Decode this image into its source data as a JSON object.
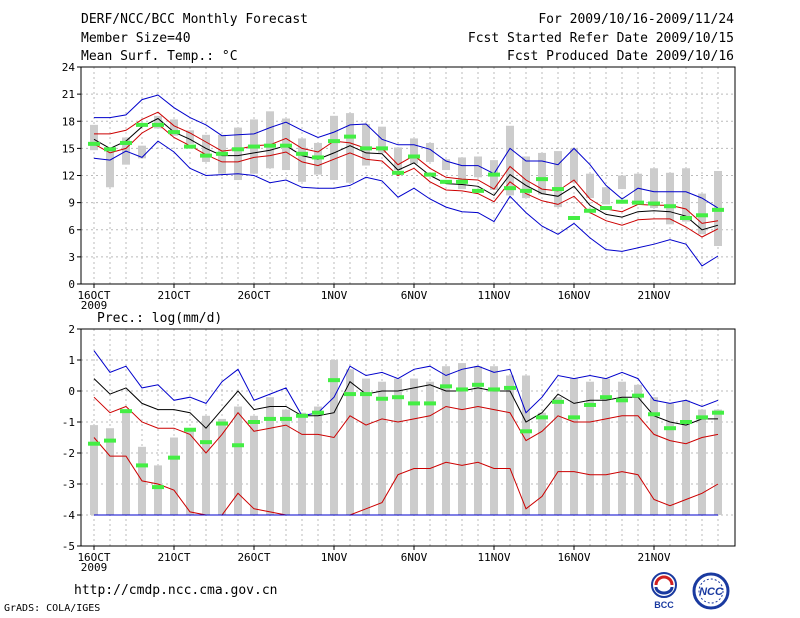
{
  "header": {
    "title": "DERF/NCC/BCC Monthly Forecast",
    "member_size": "Member Size=40",
    "variable": "Mean Surf. Temp.: °C",
    "forecast_period": "For 2009/10/16-2009/11/24",
    "started_refer": "Fcst Started Refer Date 2009/10/15",
    "produced": "Fcst Produced Date 2009/10/16"
  },
  "colors": {
    "spread_box": "#cccccc",
    "member_mean": "#44ee44",
    "envelope_outer": "#0000cc",
    "envelope_inner": "#cc0000",
    "ensemble_mean": "#000000"
  },
  "chart_data": [
    {
      "type": "line",
      "title": "Mean Surf. Temp.: °C",
      "ylim": [
        0,
        24
      ],
      "yticks": [
        0,
        3,
        6,
        9,
        12,
        15,
        18,
        21,
        24
      ],
      "x_tick_days": [
        0,
        5,
        10,
        15,
        20,
        25,
        30,
        35
      ],
      "x_tick_labels": [
        "16OCT",
        "21OCT",
        "26OCT",
        "1NOV",
        "6NOV",
        "11NOV",
        "16NOV",
        "21NOV"
      ],
      "x_sublabel": "2009",
      "days": [
        0,
        1,
        2,
        3,
        4,
        5,
        6,
        7,
        8,
        9,
        10,
        11,
        12,
        13,
        14,
        15,
        16,
        17,
        18,
        19,
        20,
        21,
        22,
        23,
        24,
        25,
        26,
        27,
        28,
        29,
        30,
        31,
        32,
        33,
        34,
        35,
        36,
        37,
        38,
        39
      ],
      "box_low": [
        14.8,
        10.7,
        13.2,
        13.9,
        17.2,
        16.4,
        15.5,
        13.5,
        12.2,
        11.5,
        12.2,
        12.8,
        12.6,
        11.3,
        12.1,
        11.5,
        11.2,
        13.1,
        14.5,
        12.6,
        13.3,
        13.5,
        12.6,
        10.5,
        11.8,
        10.4,
        9.8,
        9.5,
        9.9,
        8.5,
        11.2,
        9.5,
        8.8,
        10.5,
        9.0,
        8.4,
        6.6,
        6.9,
        5.5,
        4.2
      ],
      "box_high": [
        17.6,
        15.0,
        16.2,
        15.3,
        18.6,
        18.2,
        17.0,
        16.5,
        16.5,
        17.3,
        18.2,
        19.1,
        18.3,
        16.1,
        15.6,
        18.6,
        18.9,
        17.7,
        17.4,
        15.1,
        16.1,
        15.6,
        13.8,
        14.0,
        14.1,
        13.7,
        17.5,
        14.1,
        14.5,
        14.7,
        15.0,
        12.2,
        10.7,
        12.0,
        12.2,
        12.8,
        12.3,
        12.8,
        10.0,
        12.5
      ],
      "member_mean": [
        15.5,
        14.9,
        15.6,
        17.6,
        17.6,
        16.8,
        15.2,
        14.2,
        14.4,
        14.9,
        15.2,
        15.3,
        15.3,
        14.4,
        14.0,
        15.8,
        16.3,
        15.0,
        15.0,
        12.3,
        14.1,
        12.1,
        11.3,
        11.3,
        10.3,
        12.1,
        10.6,
        10.3,
        11.6,
        10.5,
        7.3,
        8.1,
        8.4,
        9.1,
        9.0,
        8.9,
        8.6,
        7.3,
        7.6,
        8.2
      ],
      "series": [
        {
          "name": "outer-upper",
          "color": "#0000cc",
          "values": [
            18.4,
            18.4,
            18.7,
            20.4,
            20.9,
            19.5,
            18.4,
            17.6,
            16.4,
            16.5,
            16.6,
            17.3,
            17.9,
            17.0,
            16.2,
            16.8,
            17.6,
            17.7,
            16.0,
            15.4,
            15.4,
            14.9,
            13.6,
            13.1,
            13.1,
            12.2,
            15.0,
            13.6,
            13.6,
            13.2,
            15.0,
            13.2,
            10.9,
            9.4,
            10.6,
            10.2,
            10.2,
            10.2,
            9.5,
            8.4
          ]
        },
        {
          "name": "inner-upper",
          "color": "#cc0000",
          "values": [
            16.6,
            16.6,
            17.0,
            18.2,
            19.0,
            17.5,
            16.7,
            15.7,
            14.7,
            14.9,
            15.3,
            15.4,
            16.1,
            15.0,
            14.6,
            15.8,
            15.6,
            15.0,
            15.0,
            13.2,
            14.2,
            12.8,
            11.8,
            11.6,
            11.5,
            10.5,
            13.0,
            11.5,
            10.5,
            10.3,
            11.5,
            9.4,
            8.3,
            8.0,
            8.8,
            8.7,
            8.7,
            8.3,
            6.7,
            7.0
          ]
        },
        {
          "name": "ensemble-mean",
          "color": "#000000",
          "values": [
            16.0,
            15.0,
            15.8,
            17.4,
            18.3,
            16.8,
            16.0,
            15.0,
            14.2,
            14.2,
            14.5,
            14.8,
            15.3,
            14.2,
            13.8,
            14.5,
            15.3,
            14.5,
            14.4,
            12.6,
            13.4,
            12.0,
            11.1,
            11.0,
            10.8,
            9.8,
            12.1,
            10.9,
            10.0,
            9.7,
            10.8,
            8.7,
            7.7,
            7.4,
            8.0,
            8.1,
            8.0,
            7.5,
            6.0,
            6.5
          ]
        },
        {
          "name": "inner-lower",
          "color": "#cc0000",
          "values": [
            15.5,
            14.5,
            15.0,
            16.7,
            17.7,
            16.2,
            15.3,
            14.3,
            13.5,
            13.5,
            14.0,
            14.2,
            14.6,
            13.5,
            13.1,
            13.8,
            14.5,
            13.8,
            13.6,
            12.0,
            12.8,
            11.3,
            10.4,
            10.3,
            10.0,
            9.1,
            11.3,
            10.0,
            9.2,
            8.8,
            9.7,
            7.9,
            7.0,
            6.5,
            7.1,
            7.2,
            7.2,
            6.3,
            5.2,
            6.1
          ]
        },
        {
          "name": "outer-lower",
          "color": "#0000cc",
          "values": [
            13.9,
            13.7,
            14.7,
            14.0,
            15.8,
            14.6,
            12.8,
            12.0,
            12.1,
            12.2,
            12.0,
            11.2,
            11.5,
            10.7,
            10.6,
            10.6,
            10.9,
            11.8,
            11.4,
            9.6,
            10.6,
            9.4,
            8.5,
            8.0,
            7.9,
            6.9,
            9.7,
            7.9,
            6.4,
            5.5,
            6.7,
            5.1,
            3.8,
            3.6,
            4.0,
            4.4,
            4.9,
            4.4,
            2.0,
            3.1
          ]
        }
      ]
    },
    {
      "type": "line",
      "title": "Prec.: log(mm/d)",
      "ylim": [
        -5,
        2
      ],
      "yticks": [
        -5,
        -4,
        -3,
        -2,
        -1,
        0,
        1,
        2
      ],
      "x_tick_days": [
        0,
        5,
        10,
        15,
        20,
        25,
        30,
        35
      ],
      "x_tick_labels": [
        "16OCT",
        "21OCT",
        "26OCT",
        "1NOV",
        "6NOV",
        "11NOV",
        "16NOV",
        "21NOV"
      ],
      "x_sublabel": "2009",
      "days": [
        0,
        1,
        2,
        3,
        4,
        5,
        6,
        7,
        8,
        9,
        10,
        11,
        12,
        13,
        14,
        15,
        16,
        17,
        18,
        19,
        20,
        21,
        22,
        23,
        24,
        25,
        26,
        27,
        28,
        29,
        30,
        31,
        32,
        33,
        34,
        35,
        36,
        37,
        38,
        39
      ],
      "box_low": [
        -4.0,
        -4.0,
        -4.0,
        -4.0,
        -4.0,
        -4.0,
        -4.0,
        -4.0,
        -4.0,
        -4.0,
        -4.0,
        -4.0,
        -4.0,
        -4.0,
        -4.0,
        -4.0,
        -4.0,
        -4.0,
        -4.0,
        -4.0,
        -4.0,
        -4.0,
        -4.0,
        -4.0,
        -4.0,
        -4.0,
        -4.0,
        -4.0,
        -4.0,
        -4.0,
        -4.0,
        -4.0,
        -4.0,
        -4.0,
        -4.0,
        -4.0,
        -4.0,
        -4.0,
        -4.0,
        -4.0
      ],
      "box_high": [
        -1.1,
        -1.2,
        -0.7,
        -1.8,
        -2.4,
        -1.5,
        -1.3,
        -0.8,
        -0.9,
        -0.5,
        -0.8,
        -0.2,
        -0.6,
        -0.7,
        -0.5,
        1.0,
        0.7,
        0.4,
        0.3,
        0.4,
        0.4,
        0.3,
        0.8,
        0.9,
        0.8,
        0.8,
        0.5,
        0.5,
        -0.7,
        -0.2,
        0.4,
        0.3,
        0.4,
        0.3,
        0.2,
        -0.2,
        -0.4,
        -0.3,
        -0.6,
        -0.6
      ],
      "member_mean": [
        -1.7,
        -1.6,
        -0.65,
        -2.4,
        -3.1,
        -2.15,
        -1.25,
        -1.65,
        -1.05,
        -1.75,
        -1.0,
        -0.9,
        -0.9,
        -0.8,
        -0.7,
        0.35,
        -0.1,
        -0.1,
        -0.25,
        -0.2,
        -0.4,
        -0.4,
        0.15,
        0.05,
        0.2,
        0.05,
        0.1,
        -1.3,
        -0.85,
        -0.35,
        -0.85,
        -0.45,
        -0.2,
        -0.3,
        -0.15,
        -0.75,
        -1.2,
        -1.0,
        -0.85,
        -0.7
      ],
      "series": [
        {
          "name": "outer-upper",
          "color": "#0000cc",
          "values": [
            1.3,
            0.6,
            0.8,
            0.1,
            0.2,
            -0.3,
            -0.2,
            -0.4,
            0.3,
            0.7,
            -0.3,
            -0.1,
            0.1,
            -0.8,
            -0.7,
            -0.2,
            0.8,
            0.5,
            0.6,
            0.4,
            0.7,
            0.8,
            0.5,
            0.7,
            0.8,
            0.6,
            0.7,
            -0.7,
            -0.2,
            0.5,
            0.4,
            0.5,
            0.4,
            0.6,
            0.4,
            -0.3,
            -0.4,
            -0.3,
            -0.5,
            -0.3
          ]
        },
        {
          "name": "ensemble-mean",
          "color": "#000000",
          "values": [
            0.4,
            -0.1,
            0.1,
            -0.4,
            -0.6,
            -0.6,
            -0.7,
            -1.2,
            -0.6,
            0.0,
            -0.6,
            -0.5,
            -0.5,
            -0.8,
            -0.8,
            -0.7,
            0.3,
            -0.1,
            0.0,
            0.0,
            0.1,
            0.2,
            0.0,
            0.0,
            0.1,
            0.0,
            0.0,
            -1.0,
            -0.7,
            -0.1,
            -0.4,
            -0.3,
            -0.3,
            -0.2,
            -0.2,
            -0.8,
            -1.0,
            -1.1,
            -0.9,
            -0.9
          ]
        },
        {
          "name": "inner-upper",
          "color": "#cc0000",
          "values": [
            -0.2,
            -0.7,
            -0.5,
            -1.0,
            -1.2,
            -1.2,
            -1.4,
            -2.0,
            -1.4,
            -0.7,
            -1.3,
            -1.2,
            -1.1,
            -1.4,
            -1.4,
            -1.5,
            -0.8,
            -1.1,
            -0.9,
            -1.0,
            -0.9,
            -0.8,
            -0.5,
            -0.6,
            -0.5,
            -0.6,
            -0.7,
            -1.6,
            -1.3,
            -0.8,
            -1.0,
            -1.0,
            -0.9,
            -0.8,
            -0.8,
            -1.4,
            -1.6,
            -1.7,
            -1.5,
            -1.4
          ]
        },
        {
          "name": "inner-lower",
          "color": "#cc0000",
          "values": [
            -1.5,
            -2.1,
            -2.1,
            -2.9,
            -3.0,
            -3.2,
            -3.9,
            -4.0,
            -4.0,
            -3.3,
            -3.8,
            -3.9,
            -4.0,
            -4.0,
            -4.0,
            -4.0,
            -4.0,
            -3.8,
            -3.6,
            -2.7,
            -2.5,
            -2.5,
            -2.3,
            -2.4,
            -2.3,
            -2.5,
            -2.5,
            -3.8,
            -3.4,
            -2.6,
            -2.6,
            -2.7,
            -2.7,
            -2.6,
            -2.7,
            -3.5,
            -3.7,
            -3.5,
            -3.3,
            -3.0
          ]
        },
        {
          "name": "outer-lower",
          "color": "#0000cc",
          "values": [
            -4.0,
            -4.0,
            -4.0,
            -4.0,
            -4.0,
            -4.0,
            -4.0,
            -4.0,
            -4.0,
            -4.0,
            -4.0,
            -4.0,
            -4.0,
            -4.0,
            -4.0,
            -4.0,
            -4.0,
            -4.0,
            -4.0,
            -4.0,
            -4.0,
            -4.0,
            -4.0,
            -4.0,
            -4.0,
            -4.0,
            -4.0,
            -4.0,
            -4.0,
            -4.0,
            -4.0,
            -4.0,
            -4.0,
            -4.0,
            -4.0,
            -4.0,
            -4.0,
            -4.0,
            -4.0,
            -4.0
          ]
        }
      ]
    }
  ],
  "footer": {
    "url": "http://cmdp.ncc.cma.gov.cn",
    "credit": "GrADS: COLA/IGES",
    "logo_bcc": "BCC",
    "logo_ncc": "NCC"
  }
}
